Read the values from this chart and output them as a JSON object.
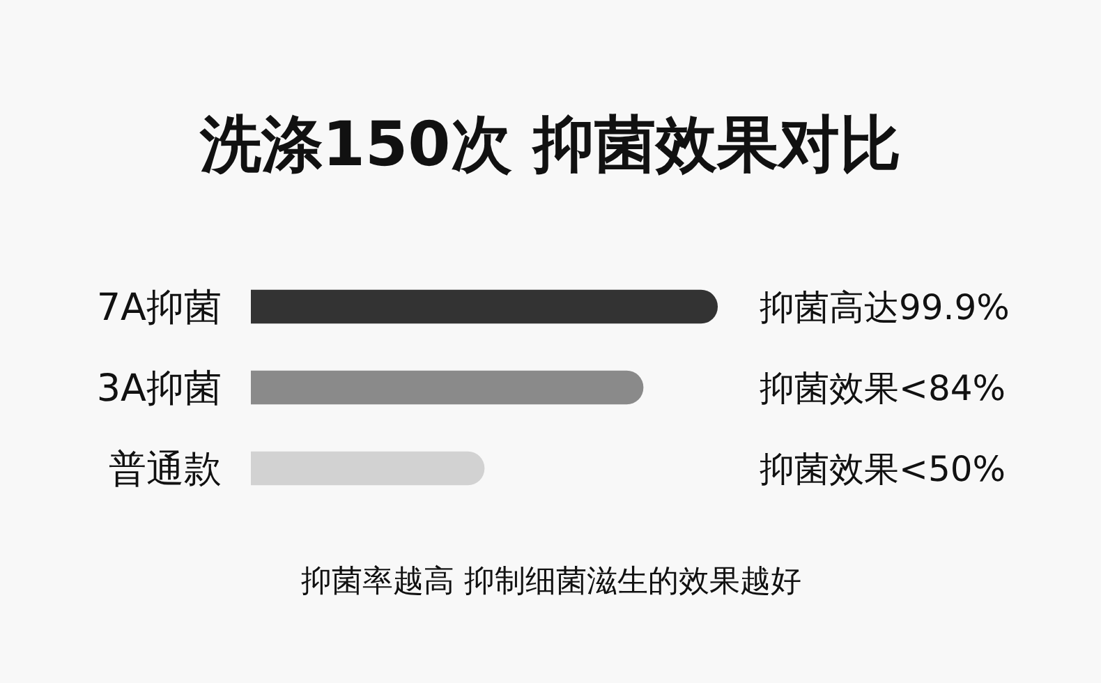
{
  "chart_data": {
    "type": "bar",
    "orientation": "horizontal",
    "title": "洗涤150次 抑菌效果对比",
    "categories": [
      "7A抑菌",
      "3A抑菌",
      "普通款"
    ],
    "values": [
      99.9,
      84,
      50
    ],
    "colors": [
      "#333333",
      "#8a8a8a",
      "#d2d2d2"
    ],
    "value_labels": [
      "抑菌高达99.9%",
      "抑菌效果<84%",
      "抑菌效果<50%"
    ],
    "annotations": [
      "抑菌率越高 抑制细菌滋生的效果越好"
    ]
  }
}
